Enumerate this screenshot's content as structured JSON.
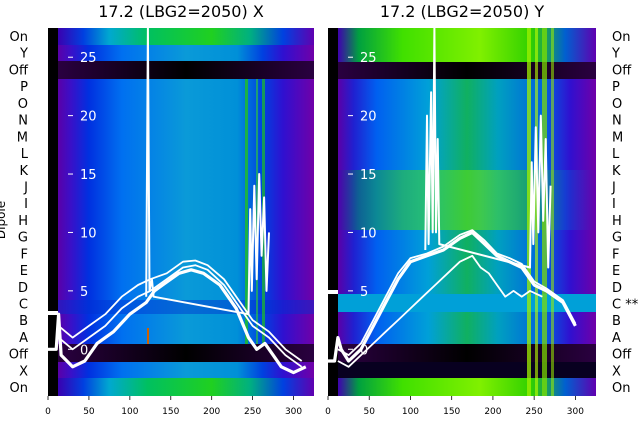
{
  "chart_data": [
    {
      "type": "heatmap",
      "title": "17.2 (LBG2=2050) X",
      "ylabel": "Dipole",
      "xlim": [
        0,
        325
      ],
      "xticks": [
        0,
        50,
        100,
        150,
        200,
        250,
        300
      ],
      "row_labels": [
        "On",
        "Y",
        "Off",
        "P",
        "O",
        "N",
        "M",
        "L",
        "K",
        "J",
        "I",
        "H",
        "G",
        "F",
        "E",
        "D",
        "C",
        "B",
        "A",
        "Off",
        "X",
        "On"
      ],
      "overlay_ylim": [
        -4,
        27.5
      ],
      "overlay_yticks": [
        0,
        5,
        10,
        15,
        20,
        25
      ],
      "overlay_tick_side": "left",
      "series": [
        {
          "values": [
            [
              0,
              0
            ],
            [
              10,
              0
            ],
            [
              13,
              3
            ],
            [
              16,
              -0.5
            ],
            [
              30,
              -1.5
            ],
            [
              45,
              -1
            ],
            [
              60,
              0.5
            ],
            [
              80,
              1.5
            ],
            [
              100,
              3
            ],
            [
              120,
              4
            ],
            [
              130,
              5
            ],
            [
              140,
              5.5
            ],
            [
              160,
              6.5
            ],
            [
              175,
              6.8
            ],
            [
              190,
              6.5
            ],
            [
              210,
              5.5
            ],
            [
              230,
              3.5
            ],
            [
              245,
              1
            ],
            [
              255,
              0
            ],
            [
              265,
              0.5
            ],
            [
              275,
              -0.5
            ],
            [
              285,
              -1.5
            ],
            [
              300,
              -2
            ],
            [
              315,
              -1.5
            ]
          ]
        },
        {
          "values": [
            [
              13,
              1
            ],
            [
              30,
              0
            ],
            [
              50,
              1
            ],
            [
              70,
              2
            ],
            [
              90,
              3.5
            ],
            [
              110,
              4.5
            ],
            [
              125,
              5
            ],
            [
              145,
              6
            ],
            [
              165,
              7
            ],
            [
              180,
              7.2
            ],
            [
              195,
              6.8
            ],
            [
              215,
              5.5
            ],
            [
              235,
              3.5
            ],
            [
              250,
              2
            ],
            [
              270,
              1
            ],
            [
              290,
              -0.5
            ],
            [
              310,
              -1.5
            ]
          ]
        },
        {
          "values": [
            [
              13,
              2
            ],
            [
              30,
              1
            ],
            [
              50,
              2
            ],
            [
              70,
              3
            ],
            [
              90,
              4.5
            ],
            [
              110,
              5.5
            ],
            [
              125,
              6
            ],
            [
              145,
              6.5
            ],
            [
              165,
              7.5
            ],
            [
              180,
              7.6
            ],
            [
              195,
              7.2
            ],
            [
              215,
              6
            ],
            [
              235,
              4
            ],
            [
              250,
              2.5
            ],
            [
              270,
              1.5
            ],
            [
              290,
              0
            ],
            [
              310,
              -1
            ]
          ]
        },
        {
          "values": [
            [
              120,
              4.5
            ],
            [
              122,
              27.5
            ],
            [
              124,
              5
            ],
            [
              127,
              6
            ],
            [
              129,
              4.5
            ],
            [
              245,
              3
            ],
            [
              247,
              12
            ],
            [
              249,
              5
            ],
            [
              252,
              14
            ],
            [
              255,
              6
            ],
            [
              258,
              15
            ],
            [
              261,
              8
            ],
            [
              264,
              13
            ],
            [
              267,
              5
            ],
            [
              270,
              10
            ]
          ]
        }
      ]
    },
    {
      "type": "heatmap",
      "title": "17.2 (LBG2=2050) Y",
      "xlim": [
        0,
        325
      ],
      "xticks": [
        0,
        50,
        100,
        150,
        200,
        250,
        300
      ],
      "row_labels": [
        "On",
        "Y",
        "Off",
        "P",
        "O",
        "N",
        "M",
        "L",
        "K",
        "J",
        "I",
        "H",
        "G",
        "F",
        "E",
        "D",
        "C **",
        "B",
        "A",
        "Off",
        "X",
        "On"
      ],
      "overlay_ylim": [
        -4,
        27.5
      ],
      "overlay_yticks": [
        0,
        5,
        10,
        15,
        20,
        25
      ],
      "overlay_tick_side": "left",
      "series": [
        {
          "values": [
            [
              0,
              -1
            ],
            [
              8,
              -1
            ],
            [
              12,
              1
            ],
            [
              16,
              0
            ],
            [
              25,
              -1
            ],
            [
              40,
              0
            ],
            [
              55,
              2
            ],
            [
              70,
              4
            ],
            [
              85,
              6
            ],
            [
              100,
              7.5
            ],
            [
              120,
              8
            ],
            [
              140,
              8.5
            ],
            [
              160,
              9.5
            ],
            [
              175,
              10
            ],
            [
              190,
              9
            ],
            [
              205,
              8
            ],
            [
              220,
              7.5
            ],
            [
              235,
              7
            ],
            [
              250,
              5.5
            ],
            [
              265,
              5
            ],
            [
              285,
              4
            ],
            [
              300,
              2
            ]
          ]
        },
        {
          "values": [
            [
              12,
              0
            ],
            [
              25,
              -0.5
            ],
            [
              40,
              0.5
            ],
            [
              55,
              2.5
            ],
            [
              70,
              4.5
            ],
            [
              85,
              6.5
            ],
            [
              100,
              7.8
            ],
            [
              120,
              8.2
            ],
            [
              140,
              8.8
            ],
            [
              160,
              9.8
            ],
            [
              175,
              10.2
            ],
            [
              190,
              9.3
            ],
            [
              205,
              8.2
            ],
            [
              220,
              7.8
            ],
            [
              235,
              7.3
            ],
            [
              250,
              5.8
            ],
            [
              265,
              5.2
            ],
            [
              285,
              4.2
            ],
            [
              300,
              2.2
            ]
          ]
        },
        {
          "values": [
            [
              12,
              -1
            ],
            [
              25,
              -1.5
            ],
            [
              40,
              -0.5
            ],
            [
              55,
              0.5
            ],
            [
              70,
              1.5
            ],
            [
              85,
              2.5
            ],
            [
              100,
              3.5
            ],
            [
              115,
              4.5
            ],
            [
              130,
              5.5
            ],
            [
              145,
              6.5
            ],
            [
              160,
              7.5
            ],
            [
              175,
              8
            ],
            [
              185,
              7
            ],
            [
              195,
              6.5
            ],
            [
              205,
              5.5
            ],
            [
              215,
              4.5
            ],
            [
              225,
              5
            ],
            [
              235,
              4.5
            ],
            [
              245,
              5
            ],
            [
              260,
              4.5
            ]
          ]
        },
        {
          "values": [
            [
              118,
              8.5
            ],
            [
              120,
              20
            ],
            [
              122,
              9
            ],
            [
              125,
              22
            ],
            [
              127,
              10
            ],
            [
              129,
              27.5
            ],
            [
              131,
              10
            ],
            [
              133,
              18
            ],
            [
              135,
              9
            ],
            [
              245,
              7
            ],
            [
              247,
              16
            ],
            [
              249,
              9
            ],
            [
              252,
              19
            ],
            [
              255,
              10
            ],
            [
              258,
              20
            ],
            [
              261,
              11
            ],
            [
              264,
              18
            ],
            [
              267,
              7
            ],
            [
              270,
              14
            ]
          ]
        }
      ]
    }
  ]
}
